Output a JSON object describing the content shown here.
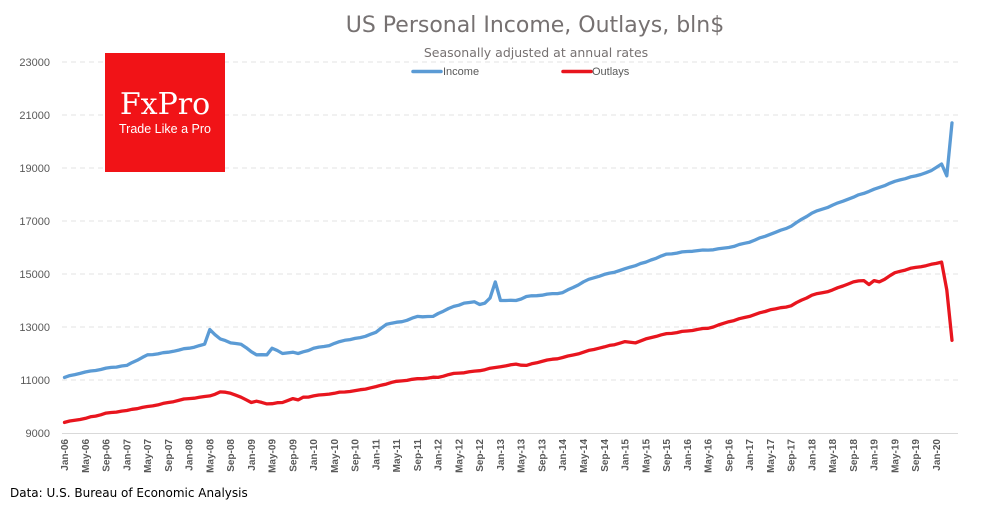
{
  "chart_data": {
    "type": "line",
    "title": "US Personal Income, Outlays, bln$",
    "subtitle": "Seasonally adjusted at annual rates",
    "xlabel": "",
    "ylabel": "",
    "ylim": [
      9000,
      23000
    ],
    "yticks": [
      9000,
      11000,
      13000,
      15000,
      17000,
      19000,
      21000,
      23000
    ],
    "ytick_labels": [
      "9000",
      "11000",
      "13000",
      "15000",
      "17000",
      "19000",
      "21000",
      "23000"
    ],
    "grid": true,
    "legend_position": "top-center",
    "x_start": "Jan-06",
    "x_end": "Apr-20",
    "x_frequency": "monthly",
    "xtick_labels": [
      "Jan-06",
      "May-06",
      "Sep-06",
      "Jan-07",
      "May-07",
      "Sep-07",
      "Jan-08",
      "May-08",
      "Sep-08",
      "Jan-09",
      "May-09",
      "Sep-09",
      "Jan-10",
      "May-10",
      "Sep-10",
      "Jan-11",
      "May-11",
      "Sep-11",
      "Jan-12",
      "May-12",
      "Sep-12",
      "Jan-13",
      "May-13",
      "Sep-13",
      "Jan-14",
      "May-14",
      "Sep-14",
      "Jan-15",
      "May-15",
      "Sep-15",
      "Jan-16",
      "May-16",
      "Sep-16",
      "Jan-17",
      "May-17",
      "Sep-17",
      "Jan-18",
      "May-18",
      "Sep-18",
      "Jan-19",
      "May-19",
      "Sep-19",
      "Jan-20"
    ],
    "series": [
      {
        "name": "Income",
        "color": "#5B9BD5",
        "anchors": [
          [
            "Jan-06",
            11100
          ],
          [
            "Apr-06",
            11250
          ],
          [
            "Sep-06",
            11450
          ],
          [
            "Jan-07",
            11550
          ],
          [
            "May-07",
            11950
          ],
          [
            "Sep-07",
            12050
          ],
          [
            "Jan-08",
            12200
          ],
          [
            "Apr-08",
            12350
          ],
          [
            "May-08",
            12900
          ],
          [
            "Jul-08",
            12550
          ],
          [
            "Sep-08",
            12400
          ],
          [
            "Nov-08",
            12350
          ],
          [
            "Feb-09",
            11950
          ],
          [
            "Apr-09",
            11950
          ],
          [
            "May-09",
            12200
          ],
          [
            "Jul-09",
            12000
          ],
          [
            "Sep-09",
            12050
          ],
          [
            "Oct-09",
            12000
          ],
          [
            "Jan-10",
            12200
          ],
          [
            "Apr-10",
            12300
          ],
          [
            "Jul-10",
            12500
          ],
          [
            "Oct-10",
            12600
          ],
          [
            "Jan-11",
            12800
          ],
          [
            "Mar-11",
            13100
          ],
          [
            "Jun-11",
            13200
          ],
          [
            "Sep-11",
            13400
          ],
          [
            "Dec-11",
            13400
          ],
          [
            "Mar-12",
            13700
          ],
          [
            "Jun-12",
            13900
          ],
          [
            "Aug-12",
            13950
          ],
          [
            "Sep-12",
            13850
          ],
          [
            "Oct-12",
            13900
          ],
          [
            "Nov-12",
            14100
          ],
          [
            "Dec-12",
            14700
          ],
          [
            "Jan-13",
            14000
          ],
          [
            "Apr-13",
            14000
          ],
          [
            "Jun-13",
            14150
          ],
          [
            "Sep-13",
            14200
          ],
          [
            "Jan-14",
            14300
          ],
          [
            "Jun-14",
            14800
          ],
          [
            "Jan-15",
            15200
          ],
          [
            "May-15",
            15450
          ],
          [
            "Sep-15",
            15750
          ],
          [
            "Jan-16",
            15850
          ],
          [
            "May-16",
            15900
          ],
          [
            "Sep-16",
            16000
          ],
          [
            "Jan-17",
            16200
          ],
          [
            "May-17",
            16500
          ],
          [
            "Sep-17",
            16800
          ],
          [
            "Jan-18",
            17300
          ],
          [
            "May-18",
            17600
          ],
          [
            "Sep-18",
            17900
          ],
          [
            "Jan-19",
            18200
          ],
          [
            "May-19",
            18500
          ],
          [
            "Sep-19",
            18700
          ],
          [
            "Dec-19",
            18900
          ],
          [
            "Feb-20",
            19150
          ],
          [
            "Mar-20",
            18700
          ],
          [
            "Apr-20",
            20700
          ]
        ]
      },
      {
        "name": "Outlays",
        "color": "#E8151E",
        "anchors": [
          [
            "Jan-06",
            9400
          ],
          [
            "May-06",
            9550
          ],
          [
            "Sep-06",
            9750
          ],
          [
            "Jan-07",
            9850
          ],
          [
            "May-07",
            10000
          ],
          [
            "Sep-07",
            10150
          ],
          [
            "Jan-08",
            10300
          ],
          [
            "May-08",
            10400
          ],
          [
            "Jul-08",
            10550
          ],
          [
            "Sep-08",
            10500
          ],
          [
            "Nov-08",
            10350
          ],
          [
            "Jan-09",
            10150
          ],
          [
            "Feb-09",
            10200
          ],
          [
            "Apr-09",
            10100
          ],
          [
            "Jul-09",
            10150
          ],
          [
            "Sep-09",
            10300
          ],
          [
            "Oct-09",
            10250
          ],
          [
            "Nov-09",
            10350
          ],
          [
            "Jan-10",
            10400
          ],
          [
            "May-10",
            10500
          ],
          [
            "Sep-10",
            10600
          ],
          [
            "Jan-11",
            10750
          ],
          [
            "May-11",
            10950
          ],
          [
            "Sep-11",
            11050
          ],
          [
            "Jan-12",
            11100
          ],
          [
            "Apr-12",
            11250
          ],
          [
            "Sep-12",
            11350
          ],
          [
            "Jan-13",
            11500
          ],
          [
            "Apr-13",
            11600
          ],
          [
            "Jun-13",
            11550
          ],
          [
            "Sep-13",
            11700
          ],
          [
            "Jan-14",
            11850
          ],
          [
            "May-14",
            12050
          ],
          [
            "Sep-14",
            12250
          ],
          [
            "Jan-15",
            12450
          ],
          [
            "Mar-15",
            12400
          ],
          [
            "Jun-15",
            12600
          ],
          [
            "Sep-15",
            12750
          ],
          [
            "Jan-16",
            12850
          ],
          [
            "May-16",
            12950
          ],
          [
            "Sep-16",
            13200
          ],
          [
            "Jan-17",
            13400
          ],
          [
            "May-17",
            13650
          ],
          [
            "Sep-17",
            13800
          ],
          [
            "Jan-18",
            14200
          ],
          [
            "May-18",
            14400
          ],
          [
            "Sep-18",
            14700
          ],
          [
            "Nov-18",
            14750
          ],
          [
            "Dec-18",
            14600
          ],
          [
            "Jan-19",
            14750
          ],
          [
            "Feb-19",
            14700
          ],
          [
            "May-19",
            15050
          ],
          [
            "Sep-19",
            15250
          ],
          [
            "Jan-20",
            15400
          ],
          [
            "Feb-20",
            15450
          ],
          [
            "Mar-20",
            14400
          ],
          [
            "Apr-20",
            12500
          ]
        ]
      }
    ]
  },
  "legend": {
    "items": [
      {
        "label": "Income",
        "color": "#5B9BD5"
      },
      {
        "label": "Outlays",
        "color": "#E8151E"
      }
    ]
  },
  "logo": {
    "brand": "FxPro",
    "tagline": "Trade Like a Pro",
    "background": "#F11317"
  },
  "source_note": "Data: U.S. Bureau of Economic Analysis"
}
